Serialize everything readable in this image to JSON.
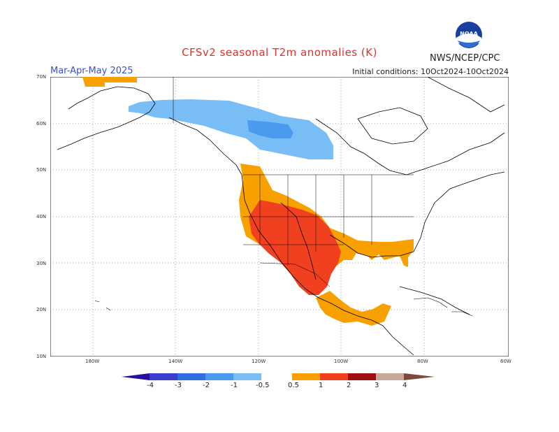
{
  "header": {
    "title": "CFSv2  seasonal  T2m  anomalies (K)",
    "season": "Mar-Apr-May 2025",
    "initial_conditions": "Initial conditions: 10Oct2024-10Oct2024",
    "agency": "NWS/NCEP/CPC",
    "logo_text": "NOAA"
  },
  "map": {
    "lat_labels": [
      "70N",
      "60N",
      "50N",
      "40N",
      "30N",
      "20N",
      "10N"
    ],
    "lon_labels": [
      "180W",
      "140W",
      "120W",
      "100W",
      "80W",
      "60W"
    ],
    "lon_range": [
      -190,
      -60
    ],
    "lat_range": [
      10,
      70
    ]
  },
  "colorbar": {
    "labels": [
      "-4",
      "-3",
      "-2",
      "-1",
      "-0.5",
      "0.5",
      "1",
      "2",
      "3",
      "4"
    ],
    "colors": [
      "#2a0f9c",
      "#3b3fd0",
      "#2f6fe0",
      "#4a9bf0",
      "#79bdf7",
      "#ffffff",
      "#f7a000",
      "#f04020",
      "#a01010",
      "#c9a79a",
      "#7a4a3a"
    ]
  },
  "anomalies": [
    {
      "region": "Western Canada",
      "level": "-0.5 to -1",
      "color": "#79bdf7"
    },
    {
      "region": "Central Canada core",
      "level": "-1 to -2",
      "color": "#4a9bf0"
    },
    {
      "region": "Southwest US and Mexico",
      "level": "1 to 2",
      "color": "#f04020"
    },
    {
      "region": "Southern and Central US",
      "level": "0.5 to 1",
      "color": "#f7a000"
    },
    {
      "region": "Northern Alaska",
      "level": "0.5 to 1",
      "color": "#f7a000"
    }
  ]
}
